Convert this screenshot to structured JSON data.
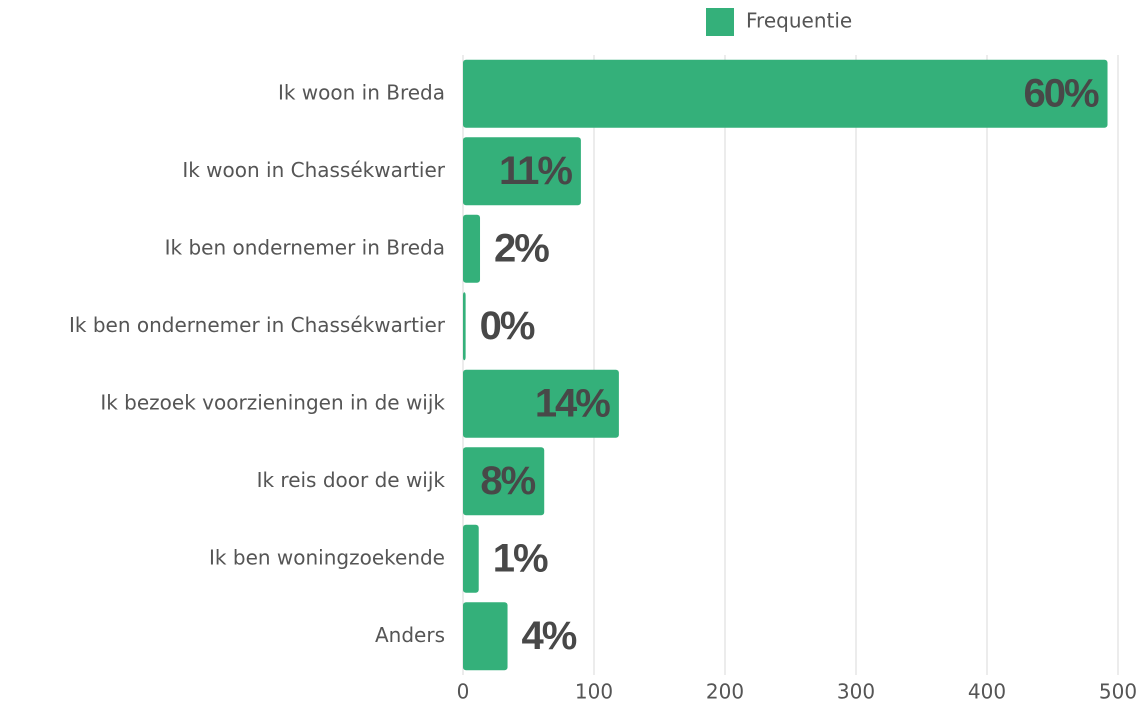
{
  "chart_data": {
    "type": "bar",
    "orientation": "horizontal",
    "categories": [
      "Ik woon in Breda",
      "Ik woon in Chassékwartier",
      "Ik ben ondernemer in Breda",
      "Ik ben ondernemer in Chassékwartier",
      "Ik bezoek voorzieningen in de wijk",
      "Ik reis door de wijk",
      "Ik ben woningzoekende",
      "Anders"
    ],
    "series": [
      {
        "name": "Frequentie",
        "color": "#34b07a",
        "values": [
          492,
          90,
          13,
          2,
          119,
          62,
          12,
          34
        ],
        "data_labels": [
          "60%",
          "11%",
          "2%",
          "0%",
          "14%",
          "8%",
          "1%",
          "4%"
        ]
      }
    ],
    "xlim": [
      0,
      500
    ],
    "xticks": [
      0,
      100,
      200,
      300,
      400,
      500
    ],
    "grid": true,
    "legend": "top"
  }
}
